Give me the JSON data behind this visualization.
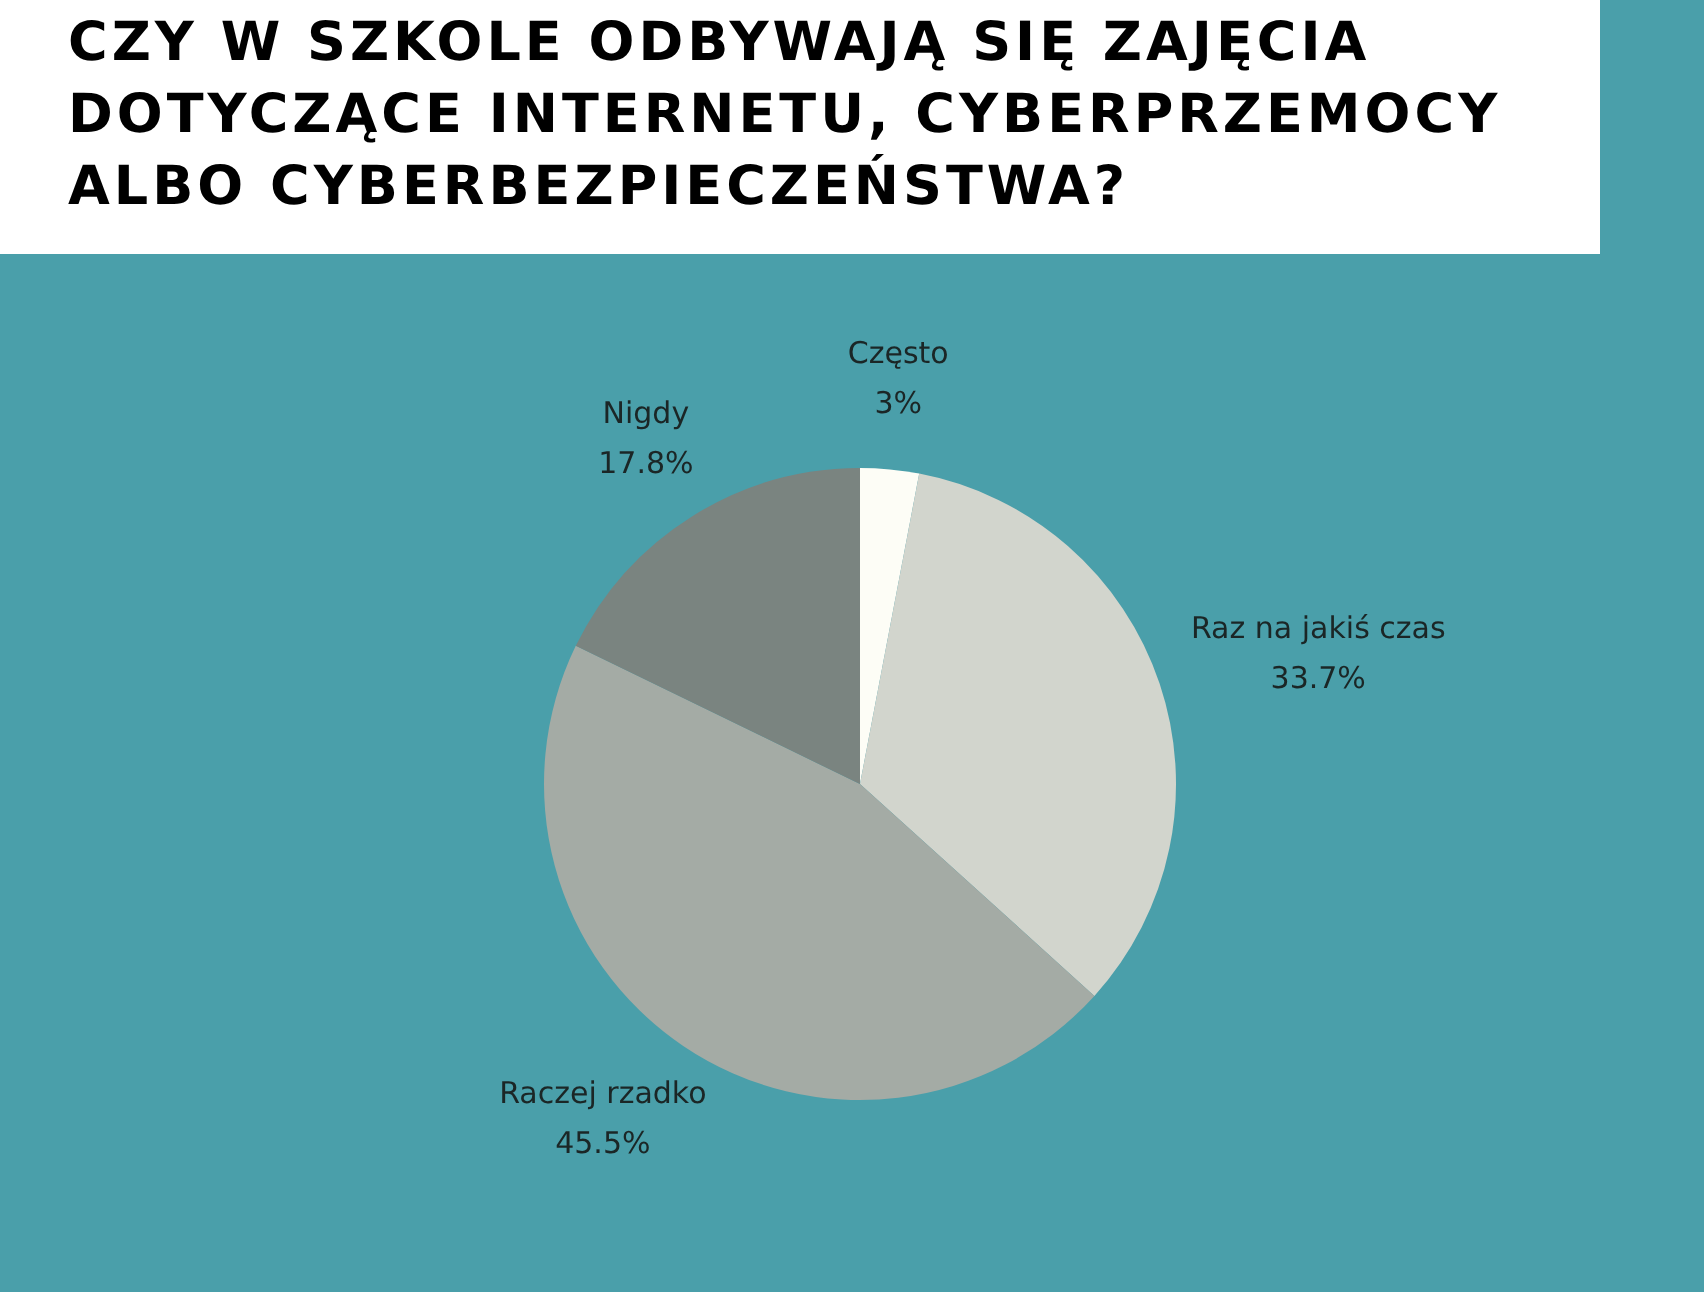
{
  "chart_data": {
    "type": "pie",
    "title": "CZY W SZKOLE ODBYWAJĄ SIĘ ZAJĘCIA DOTYCZĄCE INTERNETU, CYBERPRZEMOCY ALBO CYBERBEZPIECZEŃSTWA?",
    "categories": [
      "Często",
      "Raz na jakiś czas",
      "Raczej rzadko",
      "Nigdy"
    ],
    "values": [
      3,
      33.7,
      45.5,
      17.8
    ],
    "colors": [
      "#fdfdf6",
      "#d2d5cd",
      "#a4aba5",
      "#7a8480"
    ],
    "value_labels": [
      "3%",
      "33.7%",
      "45.5%",
      "17.8%"
    ]
  }
}
